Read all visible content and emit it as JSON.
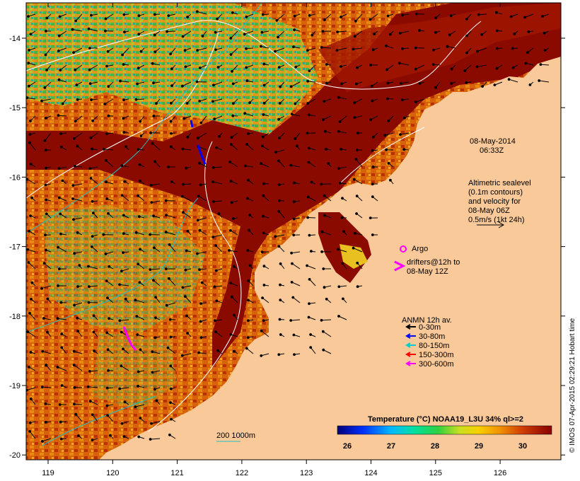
{
  "map": {
    "lon_ticks": [
      "119",
      "120",
      "121",
      "122",
      "123",
      "124",
      "125",
      "126"
    ],
    "lat_ticks": [
      "-14",
      "-15",
      "-16",
      "-17",
      "-18",
      "-19",
      "-20"
    ],
    "date_line1": "08-May-2014",
    "date_line2": "06:33Z",
    "altimetry": {
      "line1": "Altimetric sealevel",
      "line2": "(0.1m contours)",
      "line3": "and velocity for",
      "line4": "08-May 06Z",
      "line5": "0.5m/s (1kt 24h)"
    },
    "argo_label": "Argo",
    "drifters_line1": "drifters@12h to",
    "drifters_line2": "08-May 12Z",
    "anmn": {
      "title": "ANMN 12h av.",
      "items": [
        {
          "label": "0-30m",
          "color": "#000000"
        },
        {
          "label": "30-80m",
          "color": "#0000ff"
        },
        {
          "label": "80-150m",
          "color": "#00cccc"
        },
        {
          "label": "150-300m",
          "color": "#ff0000"
        },
        {
          "label": "300-600m",
          "color": "#ff00ff"
        }
      ]
    },
    "isobath_label": "200  1000m",
    "colorbar": {
      "title": "Temperature (°C) NOAA19_L3U 34% ql>=2",
      "ticks": [
        "26",
        "27",
        "28",
        "29",
        "30"
      ]
    },
    "credit": "© IMOS 07-Apr-2015 02:29:21 Hobart time",
    "colors": {
      "land": "#f9c99a",
      "warm": "#8b0a00",
      "orange": "#d95a00",
      "cool": "#2fb84a",
      "argo": "#ff00ff"
    }
  }
}
